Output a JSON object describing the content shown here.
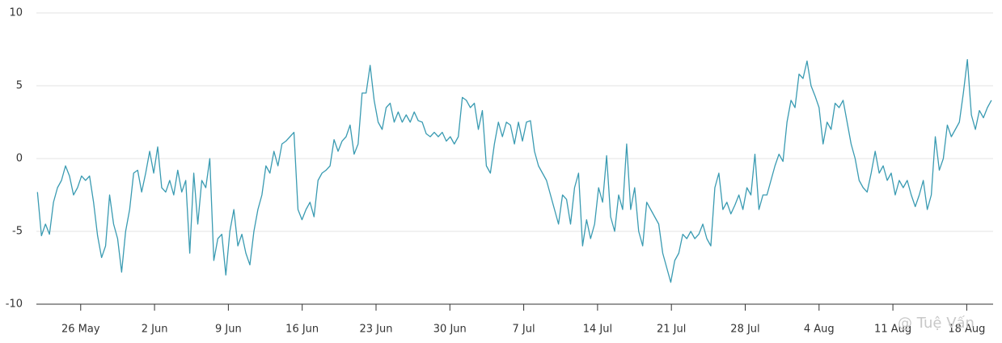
{
  "chart_data": {
    "type": "line",
    "watermark": "@ Tuệ Vấn",
    "x": [
      141.9,
      142.28,
      142.66,
      143.04,
      143.42,
      143.8,
      144.18,
      144.56,
      144.94,
      145.32,
      145.7,
      146.08,
      146.46,
      146.84,
      147.22,
      147.6,
      147.98,
      148.36,
      148.74,
      149.12,
      149.5,
      149.88,
      150.26,
      150.64,
      151.02,
      151.4,
      151.78,
      152.16,
      152.54,
      152.92,
      153.3,
      153.68,
      154.06,
      154.44,
      154.82,
      155.2,
      155.58,
      155.96,
      156.34,
      156.72,
      157.1,
      157.48,
      157.86,
      158.24,
      158.62,
      159,
      159.38,
      159.76,
      160.14,
      160.52,
      160.9,
      161.28,
      161.66,
      162.04,
      162.42,
      162.8,
      163.18,
      163.56,
      163.94,
      164.32,
      164.7,
      165.08,
      165.46,
      165.84,
      166.22,
      166.6,
      166.98,
      167.36,
      167.74,
      168.12,
      168.5,
      168.88,
      169.26,
      169.64,
      170.02,
      170.4,
      170.78,
      171.16,
      171.54,
      171.92,
      172.3,
      172.68,
      173.06,
      173.44,
      173.82,
      174.2,
      174.58,
      174.96,
      175.34,
      175.72,
      176.1,
      176.48,
      176.86,
      177.24,
      177.62,
      178,
      178.38,
      178.76,
      179.14,
      179.52,
      179.9,
      180.28,
      180.66,
      181.04,
      181.42,
      181.8,
      182.18,
      182.56,
      182.94,
      183.32,
      183.7,
      184.08,
      184.46,
      184.84,
      185.22,
      185.6,
      185.98,
      186.36,
      186.74,
      187.12,
      187.5,
      187.88,
      188.26,
      188.64,
      189.02,
      189.4,
      189.78,
      190.16,
      190.54,
      190.92,
      191.3,
      191.68,
      192.06,
      192.44,
      192.82,
      193.2,
      193.58,
      193.96,
      194.34,
      194.72,
      195.1,
      195.48,
      195.86,
      196.24,
      196.62,
      197,
      197.38,
      197.76,
      198.14,
      198.52,
      198.9,
      199.28,
      199.66,
      200.04,
      200.42,
      200.8,
      201.18,
      201.56,
      201.94,
      202.32,
      202.7,
      203.08,
      203.46,
      203.84,
      204.22,
      204.6,
      204.98,
      205.36,
      205.74,
      206.12,
      206.5,
      206.88,
      207.26,
      207.64,
      208.02,
      208.4,
      208.78,
      209.16,
      209.54,
      209.92,
      210.3,
      210.68,
      211.06,
      211.44,
      211.82,
      212.2,
      212.58,
      212.96,
      213.34,
      213.72,
      214.1,
      214.48,
      214.86,
      215.24,
      215.62,
      216,
      216.38,
      216.76,
      217.14,
      217.52,
      217.9,
      218.28,
      218.66,
      219.04,
      219.42,
      219.8,
      220.18,
      220.56,
      220.94,
      221.32,
      221.7,
      222.08,
      222.46,
      222.84,
      223.22,
      223.6,
      223.98,
      224.36,
      224.74,
      225.12,
      225.5,
      225.88,
      226.26,
      226.64,
      227.02,
      227.4,
      227.78,
      228.16,
      228.54,
      228.92,
      229.3,
      229.68,
      230.06,
      230.44,
      230.82,
      231.2,
      231.58,
      231.96,
      232.34
    ],
    "series": [
      {
        "color": "#3a9bb2",
        "values": [
          -2.3,
          -5.3,
          -4.5,
          -5.2,
          -3,
          -2,
          -1.5,
          -0.5,
          -1.2,
          -2.5,
          -2,
          -1.2,
          -1.5,
          -1.2,
          -3,
          -5.3,
          -6.8,
          -6,
          -2.5,
          -4.5,
          -5.5,
          -7.8,
          -5,
          -3.5,
          -1,
          -0.8,
          -2.3,
          -1,
          0.5,
          -1,
          0.8,
          -2,
          -2.3,
          -1.5,
          -2.5,
          -0.8,
          -2.3,
          -1.5,
          -6.5,
          -1,
          -4.5,
          -1.5,
          -2,
          0,
          -7,
          -5.5,
          -5.2,
          -8,
          -5,
          -3.5,
          -6,
          -5.2,
          -6.5,
          -7.3,
          -5,
          -3.5,
          -2.5,
          -0.5,
          -1,
          0.5,
          -0.5,
          1,
          1.2,
          1.5,
          1.8,
          -3.5,
          -4.2,
          -3.5,
          -3,
          -4,
          -1.5,
          -1,
          -0.8,
          -0.5,
          1.3,
          0.5,
          1.2,
          1.5,
          2.3,
          0.3,
          1,
          4.5,
          4.5,
          6.4,
          4,
          2.5,
          2,
          3.5,
          3.8,
          2.5,
          3.2,
          2.5,
          3,
          2.5,
          3.2,
          2.6,
          2.5,
          1.7,
          1.5,
          1.8,
          1.5,
          1.8,
          1.2,
          1.5,
          1,
          1.5,
          4.2,
          4,
          3.5,
          3.8,
          2,
          3.3,
          -0.5,
          -1,
          1,
          2.5,
          1.5,
          2.5,
          2.3,
          1,
          2.5,
          1.2,
          2.5,
          2.6,
          0.5,
          -0.5,
          -1,
          -1.5,
          -2.5,
          -3.5,
          -4.5,
          -2.5,
          -2.8,
          -4.5,
          -2,
          -1,
          -6,
          -4.2,
          -5.5,
          -4.5,
          -2,
          -3,
          0.2,
          -4,
          -5,
          -2.5,
          -3.5,
          1,
          -3.5,
          -2,
          -5,
          -6,
          -3,
          -3.5,
          -4,
          -4.5,
          -6.5,
          -7.5,
          -8.5,
          -7,
          -6.5,
          -5.2,
          -5.5,
          -5,
          -5.5,
          -5.2,
          -4.5,
          -5.5,
          -6,
          -2,
          -1,
          -3.5,
          -3,
          -3.8,
          -3.2,
          -2.5,
          -3.5,
          -2,
          -2.5,
          0.3,
          -3.5,
          -2.5,
          -2.5,
          -1.5,
          -0.5,
          0.3,
          -0.2,
          2.5,
          4,
          3.5,
          5.8,
          5.5,
          6.7,
          5,
          4.3,
          3.5,
          1,
          2.5,
          2,
          3.8,
          3.5,
          4,
          2.5,
          1,
          0,
          -1.5,
          -2,
          -2.3,
          -1,
          0.5,
          -1,
          -0.5,
          -1.5,
          -1,
          -2.5,
          -1.5,
          -2,
          -1.5,
          -2.5,
          -3.3,
          -2.5,
          -1.5,
          -3.5,
          -2.5,
          1.5,
          -0.8,
          0,
          2.3,
          1.5,
          2,
          2.5,
          4.5,
          6.8,
          3,
          2,
          3.3,
          2.8,
          3.5,
          4
        ]
      }
    ],
    "xlim": [
      141.8,
      232.5
    ],
    "xticks": [
      {
        "value": 146,
        "label": "26 May"
      },
      {
        "value": 153,
        "label": "2 Jun"
      },
      {
        "value": 160,
        "label": "9 Jun"
      },
      {
        "value": 167,
        "label": "16 Jun"
      },
      {
        "value": 174,
        "label": "23 Jun"
      },
      {
        "value": 181,
        "label": "30 Jun"
      },
      {
        "value": 188,
        "label": "7 Jul"
      },
      {
        "value": 195,
        "label": "14 Jul"
      },
      {
        "value": 202,
        "label": "21 Jul"
      },
      {
        "value": 209,
        "label": "28 Jul"
      },
      {
        "value": 216,
        "label": "4 Aug"
      },
      {
        "value": 223,
        "label": "11 Aug"
      },
      {
        "value": 230,
        "label": "18 Aug"
      }
    ],
    "ylim": [
      -10,
      10
    ],
    "yticks": [
      -10,
      -5,
      0,
      5,
      10
    ],
    "grid": true
  }
}
